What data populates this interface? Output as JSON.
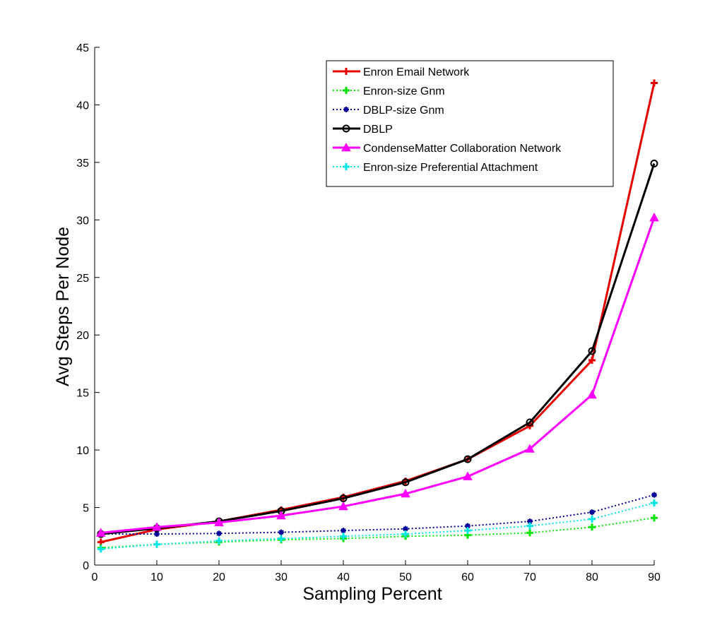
{
  "chart_data": {
    "type": "line",
    "title": "",
    "xlabel": "Sampling Percent",
    "ylabel": "Avg Steps Per Node",
    "xlim": [
      0,
      90
    ],
    "ylim": [
      0,
      45
    ],
    "xticks": [
      0,
      10,
      20,
      30,
      40,
      50,
      60,
      70,
      80,
      90
    ],
    "yticks": [
      0,
      5,
      10,
      15,
      20,
      25,
      30,
      35,
      40,
      45
    ],
    "grid": false,
    "legend_position": "top-right",
    "x": [
      1,
      10,
      20,
      30,
      40,
      50,
      60,
      70,
      80,
      90
    ],
    "series": [
      {
        "name": "Enron Email Network",
        "color": "#e60000",
        "line_style": "solid",
        "marker": "plus",
        "values": [
          2.0,
          3.1,
          3.8,
          4.8,
          5.9,
          7.3,
          9.2,
          12.1,
          17.8,
          41.9
        ]
      },
      {
        "name": "Enron-size Gnm",
        "color": "#00e600",
        "line_style": "dotted",
        "marker": "plus",
        "values": [
          1.5,
          1.8,
          2.0,
          2.2,
          2.3,
          2.5,
          2.6,
          2.8,
          3.3,
          4.1
        ]
      },
      {
        "name": "DBLP-size Gnm",
        "color": "#000099",
        "line_style": "dotted",
        "marker": "star",
        "values": [
          2.7,
          2.7,
          2.75,
          2.85,
          3.0,
          3.15,
          3.4,
          3.8,
          4.6,
          6.1
        ]
      },
      {
        "name": "DBLP",
        "color": "#000000",
        "line_style": "solid",
        "marker": "circle",
        "values": [
          2.7,
          3.2,
          3.8,
          4.7,
          5.8,
          7.2,
          9.2,
          12.4,
          18.6,
          34.9
        ]
      },
      {
        "name": "CondenseMatter Collaboration Network",
        "color": "#ff00ff",
        "line_style": "solid",
        "marker": "triangle",
        "values": [
          2.8,
          3.3,
          3.7,
          4.3,
          5.1,
          6.2,
          7.7,
          10.1,
          14.8,
          30.2
        ]
      },
      {
        "name": "Enron-size Preferential Attachment",
        "color": "#00e6e6",
        "line_style": "dotted",
        "marker": "plus",
        "values": [
          1.4,
          1.8,
          2.1,
          2.3,
          2.5,
          2.7,
          3.0,
          3.4,
          4.0,
          5.4
        ]
      }
    ]
  }
}
